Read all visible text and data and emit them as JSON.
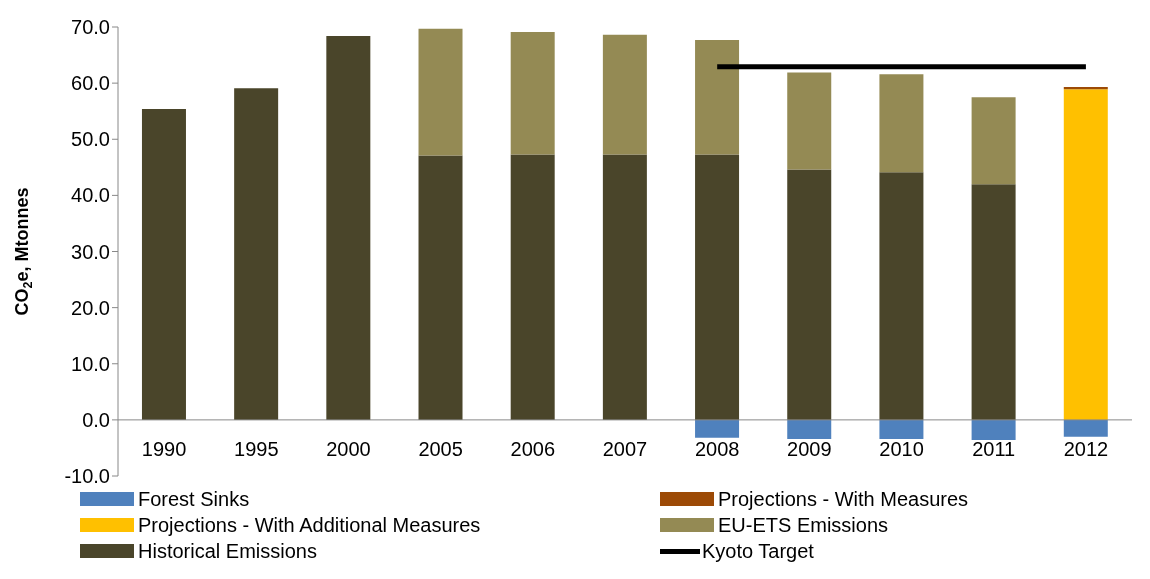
{
  "chart_data": {
    "type": "bar",
    "stacked": true,
    "ylabel": "CO$_{2}$e, Mtonnes",
    "categories": [
      "1990",
      "1995",
      "2000",
      "2005",
      "2006",
      "2007",
      "2008",
      "2009",
      "2010",
      "2011",
      "2012"
    ],
    "series": [
      {
        "name": "Forest Sinks",
        "color": "#4f81bd",
        "values": [
          null,
          null,
          null,
          null,
          null,
          null,
          -3.2,
          -3.4,
          -3.4,
          -3.6,
          -3.0
        ]
      },
      {
        "name": "Projections - With Additional Measures",
        "color": "#ffc000",
        "values": [
          null,
          null,
          null,
          null,
          null,
          null,
          null,
          null,
          null,
          null,
          58.9
        ]
      },
      {
        "name": "Historical Emissions",
        "color": "#4a452a",
        "values": [
          55.4,
          59.1,
          68.4,
          47.1,
          47.3,
          47.3,
          47.3,
          44.6,
          44.1,
          42.0,
          null
        ]
      },
      {
        "name": "Projections - With Measures",
        "color": "#9c4a06",
        "values": [
          null,
          null,
          null,
          null,
          null,
          null,
          null,
          null,
          null,
          null,
          0.4
        ]
      },
      {
        "name": "EU-ETS Emissions",
        "color": "#948a54",
        "values": [
          null,
          null,
          null,
          22.6,
          21.8,
          21.3,
          20.4,
          17.3,
          17.5,
          15.5,
          null
        ]
      },
      {
        "name": "Kyoto Target",
        "type": "line",
        "color": "#000000",
        "marker": "none",
        "values": [
          null,
          null,
          null,
          null,
          null,
          null,
          62.9,
          62.9,
          62.9,
          62.9,
          62.9
        ]
      }
    ],
    "ylim": [
      -10,
      70
    ],
    "yticks": [
      {
        "value": -10,
        "label": "-10.0"
      },
      {
        "value": 0,
        "label": "0.0"
      },
      {
        "value": 10,
        "label": "10.0"
      },
      {
        "value": 20,
        "label": "20.0"
      },
      {
        "value": 30,
        "label": "30.0"
      },
      {
        "value": 40,
        "label": "40.0"
      },
      {
        "value": 50,
        "label": "50.0"
      },
      {
        "value": 60,
        "label": "60.0"
      },
      {
        "value": 70,
        "label": "70.0"
      }
    ],
    "grid": false,
    "legend": "bottom"
  }
}
